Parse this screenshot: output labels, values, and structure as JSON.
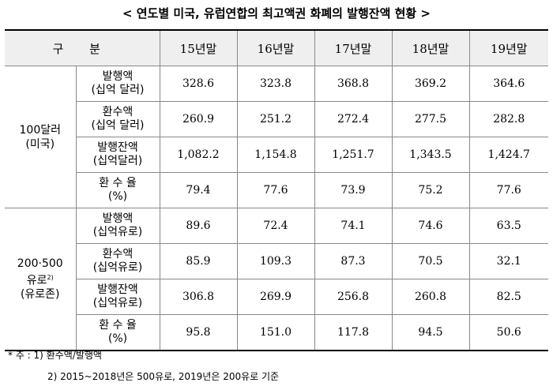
{
  "title": "< 연도별 미국, 유럽연합의 최고액권 화폐의 발행잔액 현황 >",
  "header": {
    "category": "구  분",
    "years": [
      "15년말",
      "16년말",
      "17년말",
      "18년말",
      "19년말"
    ]
  },
  "groups": [
    {
      "name_line1": "100달러",
      "name_line2": "(미국)",
      "name_line3": "",
      "rows": [
        {
          "line1": "발행액",
          "line2": "(십억 달러)",
          "values": [
            "328.6",
            "323.8",
            "368.8",
            "369.2",
            "364.6"
          ]
        },
        {
          "line1": "환수액",
          "line2": "(십억 달러)",
          "values": [
            "260.9",
            "251.2",
            "272.4",
            "277.5",
            "282.8"
          ]
        },
        {
          "line1": "발행잔액",
          "line2": "(십억달러)",
          "values": [
            "1,082.2",
            "1,154.8",
            "1,251.7",
            "1,343.5",
            "1,424.7"
          ]
        },
        {
          "line1": "환 수 율",
          "line2": "(%)",
          "values": [
            "79.4",
            "77.6",
            "73.9",
            "75.2",
            "77.6"
          ]
        }
      ]
    },
    {
      "name_line1": "200·500",
      "name_line2": "유로",
      "name_note": "2)",
      "name_line3": "(유로존)",
      "rows": [
        {
          "line1": "발행액",
          "line2": "(십억유로)",
          "values": [
            "89.6",
            "72.4",
            "74.1",
            "74.6",
            "63.5"
          ]
        },
        {
          "line1": "환수액",
          "line2": "(십억유로)",
          "values": [
            "85.9",
            "109.3",
            "87.3",
            "70.5",
            "32.1"
          ]
        },
        {
          "line1": "발행잔액",
          "line2": "(십억유로)",
          "values": [
            "306.8",
            "269.9",
            "256.8",
            "260.8",
            "82.5"
          ]
        },
        {
          "line1": "환 수 율",
          "line2": "(%)",
          "values": [
            "95.8",
            "151.0",
            "117.8",
            "94.5",
            "50.6"
          ]
        }
      ]
    }
  ],
  "footnotes": {
    "note1": "* 주 : 1) 환수액/발행액",
    "note2": "2) 2015~2018년은 500유로, 2019년은 200유로 기준"
  }
}
